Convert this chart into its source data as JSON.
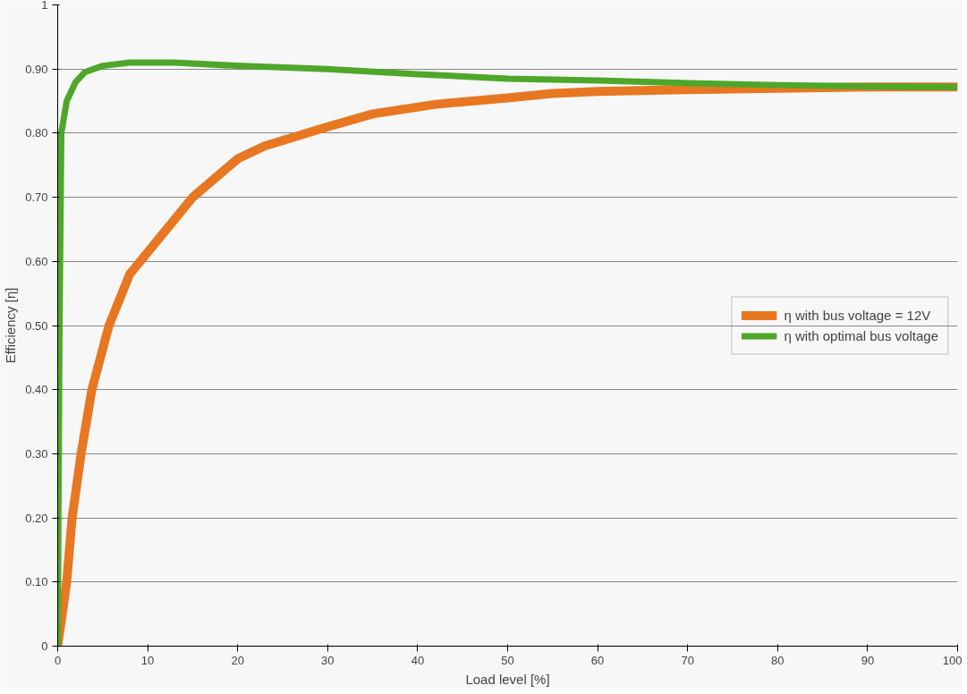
{
  "chart_data": {
    "type": "line",
    "xlabel": "Load level [%]",
    "ylabel": "Efficiency [η]",
    "xlim": [
      0,
      100
    ],
    "ylim": [
      0,
      1
    ],
    "xticks": [
      0,
      10,
      20,
      30,
      40,
      50,
      60,
      70,
      80,
      90,
      100
    ],
    "yticks": [
      {
        "value": 0,
        "label": "0"
      },
      {
        "value": 0.1,
        "label": "0.10"
      },
      {
        "value": 0.2,
        "label": "0.20"
      },
      {
        "value": 0.3,
        "label": "0.30"
      },
      {
        "value": 0.4,
        "label": "0.40"
      },
      {
        "value": 0.5,
        "label": "0.50"
      },
      {
        "value": 0.6,
        "label": "0.60"
      },
      {
        "value": 0.7,
        "label": "0.70"
      },
      {
        "value": 0.8,
        "label": "0.80"
      },
      {
        "value": 0.9,
        "label": "0.90"
      },
      {
        "value": 1,
        "label": "1"
      }
    ],
    "grid": "y",
    "legend": "right",
    "line_style": "solid",
    "marker": "none",
    "series": [
      {
        "name": "η with bus voltage = 12V",
        "color": "#e87722",
        "x": [
          0,
          1,
          1.6,
          2.6,
          3.8,
          5.7,
          8,
          15,
          20,
          23,
          30,
          35,
          42,
          50,
          55,
          60,
          70,
          80,
          90,
          100
        ],
        "values": [
          0,
          0.1,
          0.2,
          0.3,
          0.4,
          0.5,
          0.58,
          0.7,
          0.76,
          0.78,
          0.81,
          0.83,
          0.845,
          0.855,
          0.862,
          0.865,
          0.868,
          0.87,
          0.872,
          0.872
        ]
      },
      {
        "name": "η with optimal bus voltage",
        "color": "#4ea72a",
        "x": [
          0,
          0.2,
          0.4,
          1,
          2,
          3,
          5,
          8,
          13,
          20,
          30,
          40,
          50,
          60,
          70,
          80,
          90,
          100
        ],
        "values": [
          0,
          0.5,
          0.8,
          0.85,
          0.88,
          0.895,
          0.905,
          0.91,
          0.91,
          0.905,
          0.9,
          0.892,
          0.885,
          0.882,
          0.878,
          0.875,
          0.873,
          0.872
        ]
      }
    ]
  }
}
